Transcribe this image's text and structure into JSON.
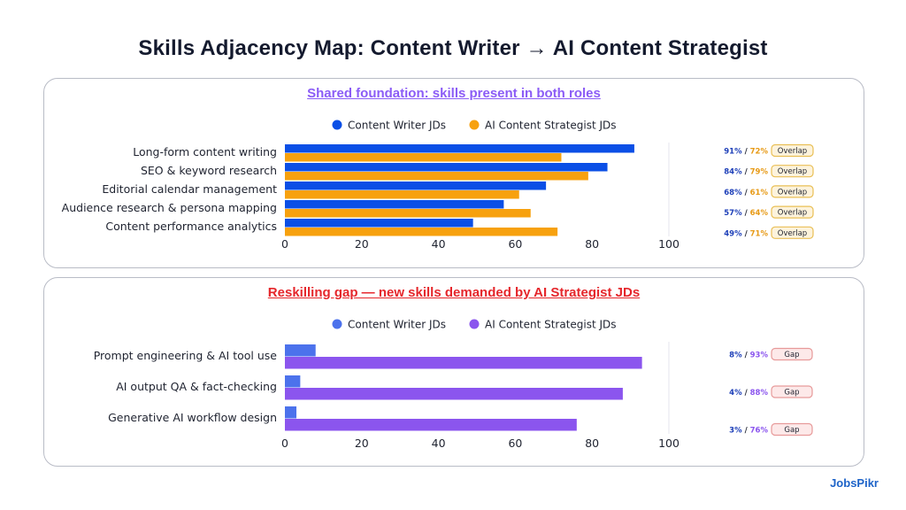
{
  "title": "Skills Adjacency Map: Content Writer → AI Content Strategist",
  "logo": {
    "text": "JobsPikr"
  },
  "colors": {
    "writer_blue": "#0b4fe6",
    "strategist_orange": "#f7a10e",
    "writer_light_blue": "#4c72ec",
    "strategist_purple": "#8b55ee",
    "overlap_badge_fill": "#fdf3dc",
    "overlap_badge_border": "#e9bf55",
    "gap_badge_fill": "#fde9e9",
    "gap_badge_border": "#e79a9a"
  },
  "chart_data": [
    {
      "type": "bar",
      "orientation": "horizontal",
      "title": "Shared foundation: skills present in both roles",
      "categories": [
        "Long-form content writing",
        "SEO & keyword research",
        "Editorial calendar management",
        "Audience research & persona mapping",
        "Content performance analytics"
      ],
      "series": [
        {
          "name": "Content Writer JDs",
          "values": [
            91,
            84,
            68,
            57,
            49
          ]
        },
        {
          "name": "AI Content Strategist JDs",
          "values": [
            72,
            79,
            61,
            64,
            71
          ]
        }
      ],
      "xlim": [
        0,
        100
      ],
      "xticks": [
        0,
        20,
        40,
        60,
        80,
        100
      ],
      "legend": "top-center",
      "annotations": [
        {
          "a": "91%",
          "b": "72%",
          "badge": "Overlap"
        },
        {
          "a": "84%",
          "b": "79%",
          "badge": "Overlap"
        },
        {
          "a": "68%",
          "b": "61%",
          "badge": "Overlap"
        },
        {
          "a": "57%",
          "b": "64%",
          "badge": "Overlap"
        },
        {
          "a": "49%",
          "b": "71%",
          "badge": "Overlap"
        }
      ]
    },
    {
      "type": "bar",
      "orientation": "horizontal",
      "title": "Reskilling gap — new skills demanded by AI Strategist JDs",
      "categories": [
        "Prompt engineering & AI tool use",
        "AI output QA & fact-checking",
        "Generative AI workflow design"
      ],
      "series": [
        {
          "name": "Content Writer JDs",
          "values": [
            8,
            4,
            3
          ]
        },
        {
          "name": "AI Content Strategist JDs",
          "values": [
            93,
            88,
            76
          ]
        }
      ],
      "xlim": [
        0,
        100
      ],
      "xticks": [
        0,
        20,
        40,
        60,
        80,
        100
      ],
      "legend": "top-center",
      "annotations": [
        {
          "a": "8%",
          "b": "93%",
          "badge": "Gap"
        },
        {
          "a": "4%",
          "b": "88%",
          "badge": "Gap"
        },
        {
          "a": "3%",
          "b": "76%",
          "badge": "Gap"
        }
      ]
    }
  ]
}
